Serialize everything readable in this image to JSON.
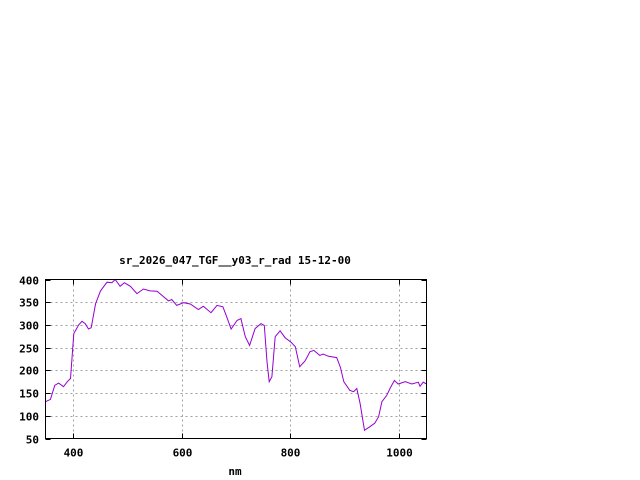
{
  "chart_data": {
    "type": "line",
    "title": "sr_2026_047_TGF__y03_r_rad 15-12-00",
    "xlabel": "nm",
    "ylabel": "",
    "xlim": [
      350,
      1050
    ],
    "ylim": [
      50,
      400
    ],
    "xticks": [
      400,
      600,
      800,
      1000
    ],
    "yticks": [
      50,
      100,
      150,
      200,
      250,
      300,
      350,
      400
    ],
    "grid": true,
    "line_color": "#9400d3",
    "series": [
      {
        "x": [
          350,
          359,
          367,
          374,
          383,
          390,
          396,
          402,
          411,
          417,
          423,
          429,
          434,
          442,
          451,
          463,
          472,
          478,
          487,
          495,
          506,
          518,
          530,
          542,
          555,
          567,
          576,
          582,
          591,
          604,
          616,
          631,
          640,
          654,
          665,
          676,
          683,
          691,
          702,
          709,
          717,
          725,
          735,
          746,
          752,
          757,
          761,
          766,
          772,
          781,
          790,
          802,
          809,
          817,
          827,
          836,
          843,
          854,
          860,
          870,
          885,
          892,
          898,
          909,
          916,
          922,
          928,
          936,
          946,
          955,
          962,
          968,
          977,
          983,
          991,
          998,
          1011,
          1023,
          1035,
          1038,
          1044,
          1050
        ],
        "y": [
          131,
          136,
          167,
          172,
          164,
          175,
          182,
          281,
          300,
          308,
          303,
          291,
          294,
          347,
          375,
          394,
          393,
          400,
          385,
          393,
          385,
          369,
          379,
          375,
          374,
          362,
          353,
          356,
          343,
          349,
          346,
          334,
          341,
          327,
          343,
          340,
          318,
          291,
          310,
          314,
          274,
          255,
          292,
          303,
          299,
          219,
          175,
          186,
          274,
          287,
          272,
          261,
          252,
          208,
          221,
          241,
          244,
          233,
          236,
          231,
          228,
          206,
          175,
          156,
          153,
          160,
          127,
          68,
          76,
          84,
          98,
          131,
          145,
          160,
          178,
          170,
          175,
          170,
          174,
          165,
          174,
          170
        ]
      }
    ]
  }
}
